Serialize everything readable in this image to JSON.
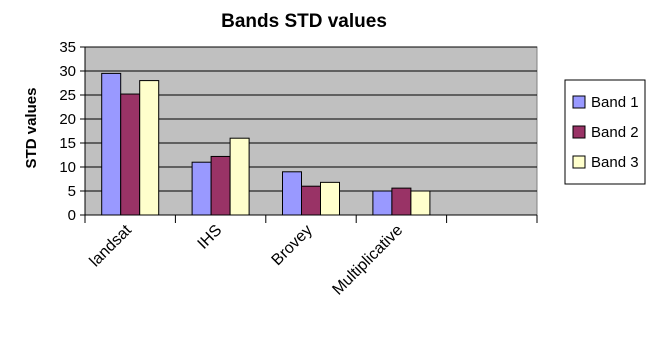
{
  "chart_data": {
    "type": "bar",
    "title": "Bands STD values",
    "xlabel": "",
    "ylabel": "STD values",
    "categories": [
      "landsat",
      "IHS",
      "Brovey",
      "Multiplicative",
      ""
    ],
    "ylim": [
      0,
      35
    ],
    "ytick_step": 5,
    "grid": true,
    "legend_position": "right",
    "colors": {
      "plot_background": "#C0C0C0",
      "band1": "#9999FF",
      "band2": "#993366",
      "band3": "#FFFFCC"
    },
    "series": [
      {
        "name": "Band 1",
        "color": "#9999FF",
        "values": [
          29.5,
          11,
          9,
          5,
          null
        ]
      },
      {
        "name": "Band 2",
        "color": "#993366",
        "values": [
          25.2,
          12.2,
          6,
          5.6,
          null
        ]
      },
      {
        "name": "Band 3",
        "color": "#FFFFCC",
        "values": [
          28,
          16,
          6.8,
          5,
          null
        ]
      }
    ]
  }
}
